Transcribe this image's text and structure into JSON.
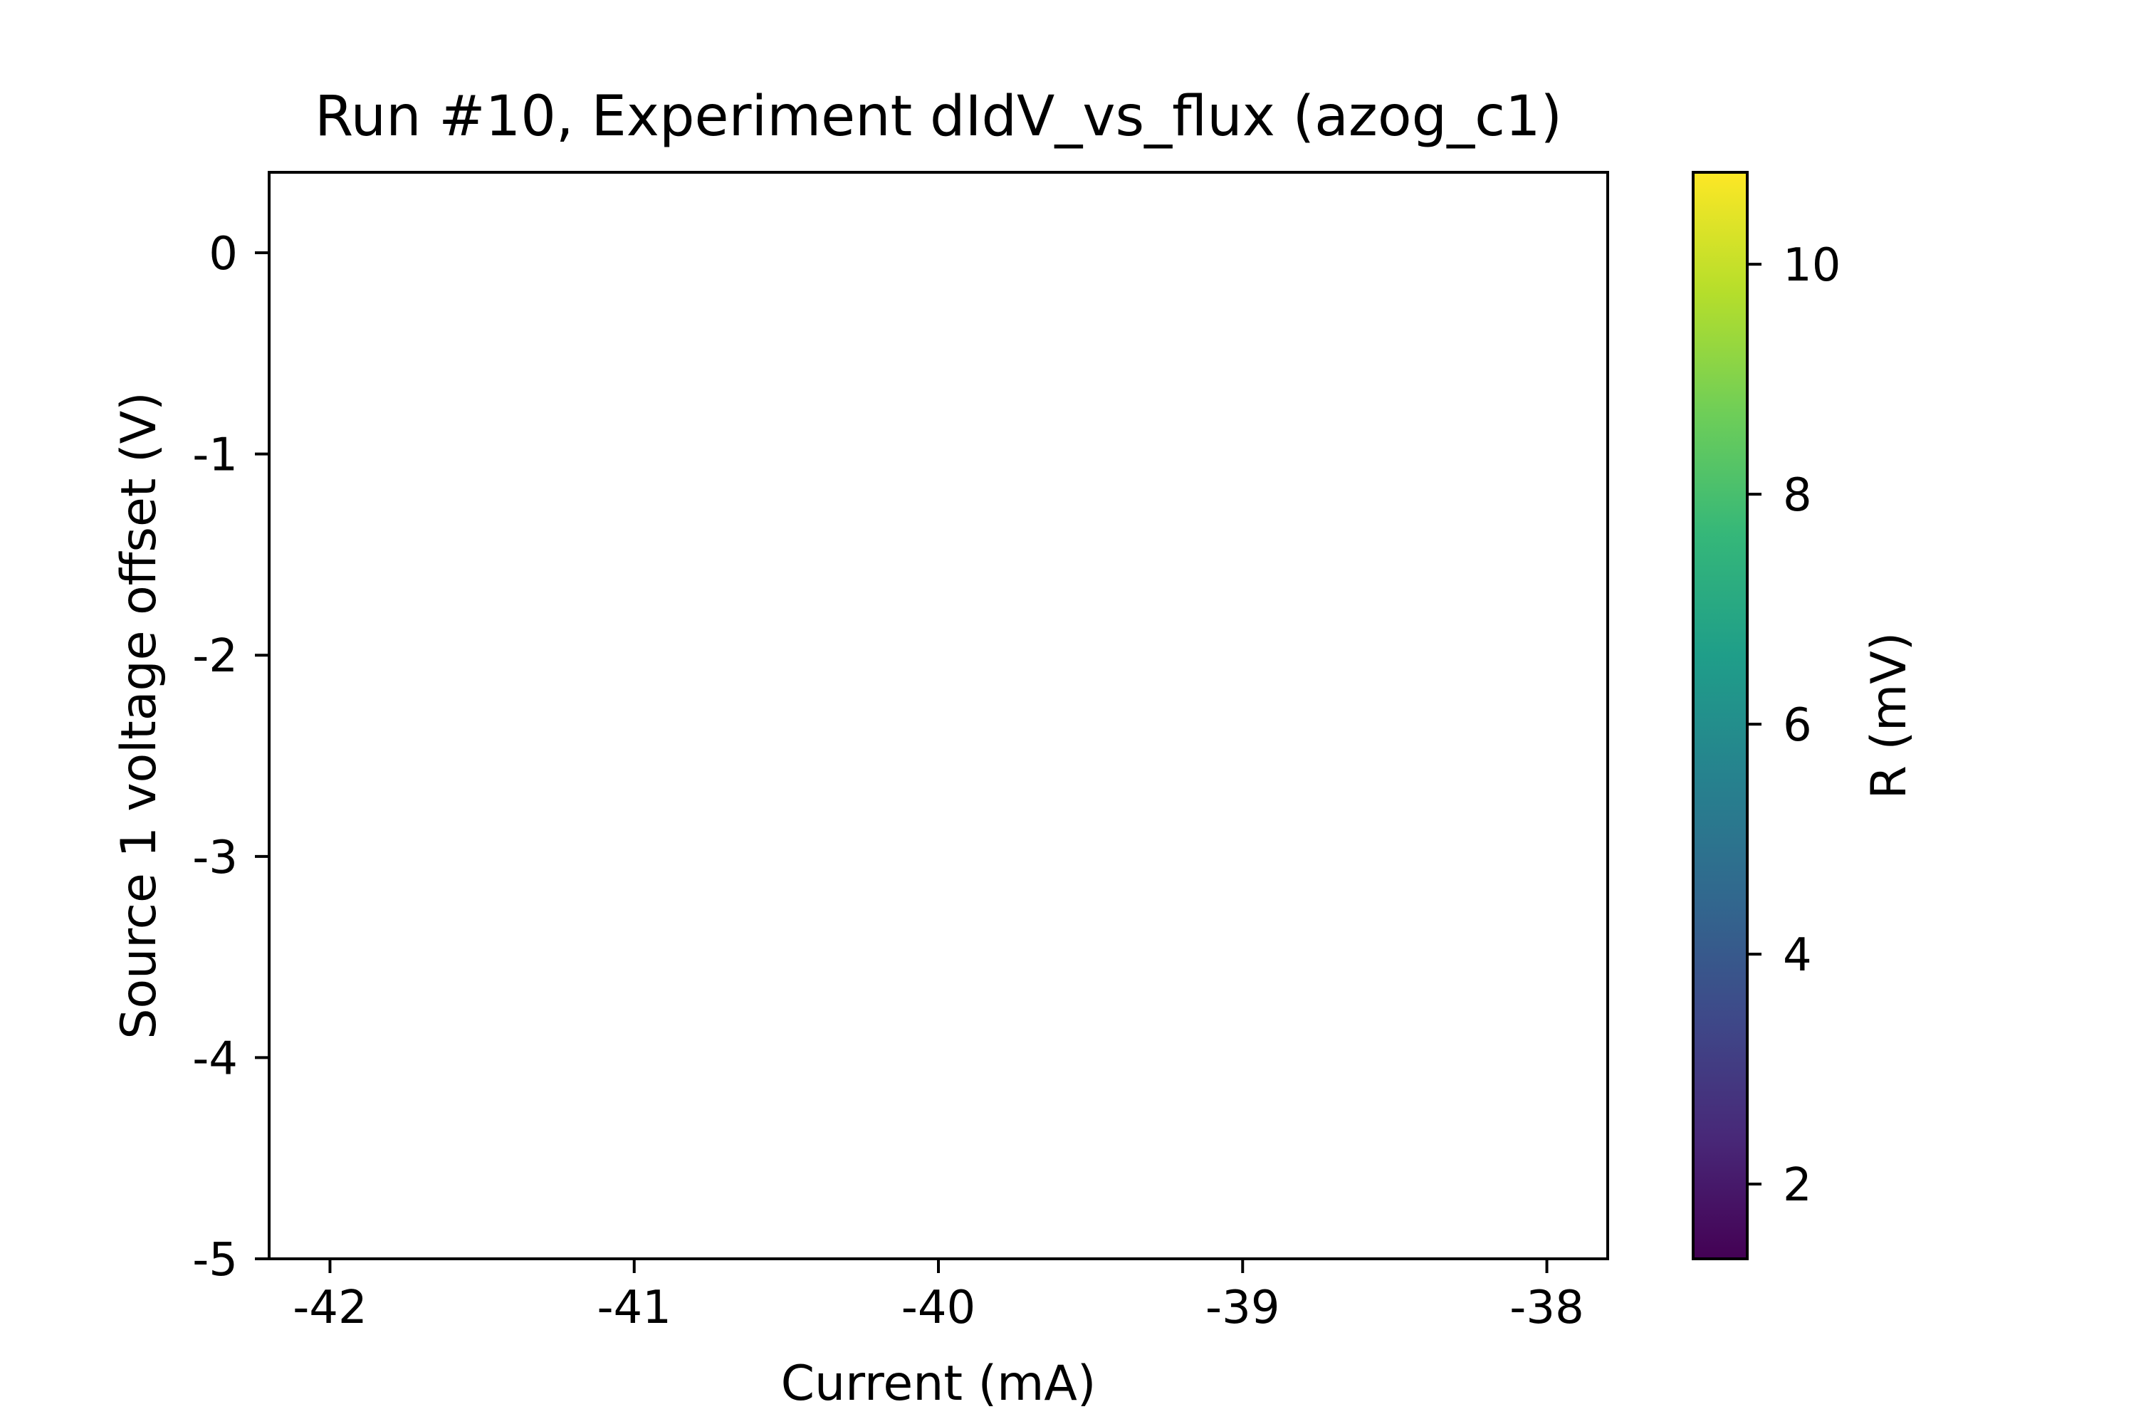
{
  "chart_data": {
    "type": "heatmap",
    "title": "Run #10, Experiment dIdV_vs_flux (azog_c1)",
    "xlabel": "Current (mA)",
    "ylabel": "Source 1 voltage offset (V)",
    "xlim": [
      -42.2,
      -37.8
    ],
    "ylim": [
      -5.0,
      0.4
    ],
    "xticks": [
      -42,
      -41,
      -40,
      -39,
      -38
    ],
    "xtick_labels": [
      "-42",
      "-41",
      "-40",
      "-39",
      "-38"
    ],
    "yticks": [
      0,
      -1,
      -2,
      -3,
      -4,
      -5
    ],
    "ytick_labels": [
      "0",
      "-1",
      "-2",
      "-3",
      "-4",
      "-5"
    ],
    "data": [],
    "grid": false,
    "colorbar": {
      "label": "R (mV)",
      "colormap": "viridis",
      "range": [
        1.35,
        10.8
      ],
      "ticks": [
        2,
        4,
        6,
        8,
        10
      ],
      "tick_labels": [
        "2",
        "4",
        "6",
        "8",
        "10"
      ]
    }
  },
  "colors": {
    "viridis": [
      "#440154",
      "#482878",
      "#3e4989",
      "#31688e",
      "#26828e",
      "#1f9e89",
      "#35b779",
      "#6ece58",
      "#b5de2b",
      "#fde725"
    ],
    "axis": "#000000",
    "background": "#ffffff"
  }
}
